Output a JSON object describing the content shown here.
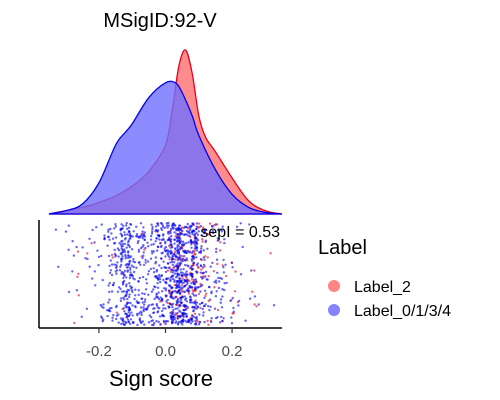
{
  "chart_data": {
    "type": "scatter",
    "title": "MSigID:92-V",
    "xlabel": "Sign score",
    "ylabel": "",
    "xlim": [
      -0.38,
      0.35
    ],
    "xticks": [
      -0.2,
      0.0,
      0.2
    ],
    "xtick_labels": [
      "-0.2",
      "0.0",
      "0.2"
    ],
    "annotation": "sepI = 0.53",
    "legend": {
      "title": "Label",
      "position": "right"
    },
    "grid": false,
    "series": [
      {
        "name": "Label_2",
        "color": "#FF6F6F",
        "line_color": "#E8001C",
        "n_points": 200,
        "density": {
          "x": [
            -0.35,
            -0.3,
            -0.25,
            -0.2,
            -0.15,
            -0.1,
            -0.05,
            0.0,
            0.02,
            0.04,
            0.06,
            0.08,
            0.1,
            0.12,
            0.15,
            0.2,
            0.25,
            0.3,
            0.35
          ],
          "y": [
            0.0,
            0.02,
            0.04,
            0.07,
            0.11,
            0.17,
            0.26,
            0.42,
            0.63,
            0.9,
            1.0,
            0.86,
            0.6,
            0.47,
            0.38,
            0.22,
            0.08,
            0.02,
            0.0
          ]
        }
      },
      {
        "name": "Label_0/1/3/4",
        "color": "#6F6FFF",
        "line_color": "#0000EE",
        "n_points": 1200,
        "density": {
          "x": [
            -0.35,
            -0.3,
            -0.25,
            -0.2,
            -0.15,
            -0.12,
            -0.1,
            -0.05,
            0.0,
            0.03,
            0.05,
            0.08,
            0.1,
            0.15,
            0.2,
            0.25,
            0.3,
            0.35
          ],
          "y": [
            0.0,
            0.02,
            0.06,
            0.19,
            0.42,
            0.5,
            0.55,
            0.71,
            0.8,
            0.8,
            0.74,
            0.6,
            0.48,
            0.27,
            0.12,
            0.04,
            0.01,
            0.0
          ]
        }
      }
    ]
  }
}
